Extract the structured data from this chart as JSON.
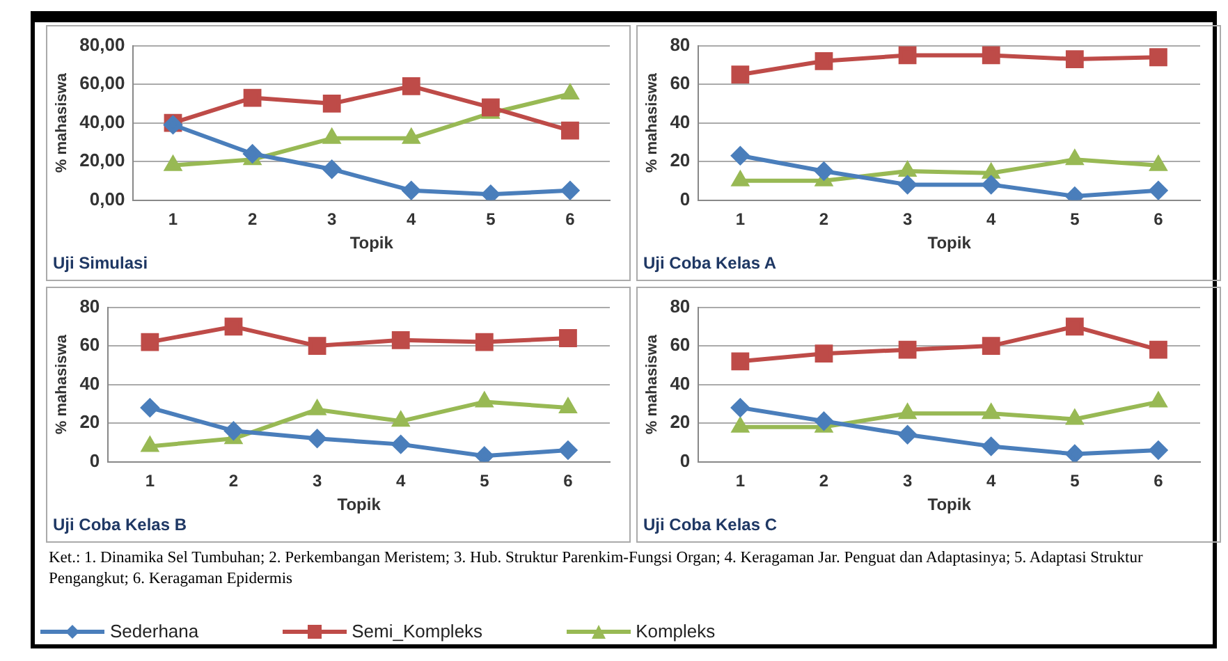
{
  "chart_data": [
    {
      "type": "line",
      "title": "Uji Simulasi",
      "xlabel": "Topik",
      "ylabel": "% mahasiswa",
      "categories": [
        "1",
        "2",
        "3",
        "4",
        "5",
        "6"
      ],
      "ylim": [
        0,
        80
      ],
      "yticks": [
        {
          "value": 0,
          "label": "0,00"
        },
        {
          "value": 20,
          "label": "20,00"
        },
        {
          "value": 40,
          "label": "40,00"
        },
        {
          "value": 60,
          "label": "60,00"
        },
        {
          "value": 80,
          "label": "80,00"
        }
      ],
      "grid": "y",
      "series": [
        {
          "color": "#4a7ebb",
          "marker": "diamond",
          "values": [
            39,
            24,
            16,
            5,
            3,
            5
          ]
        },
        {
          "color": "#be4b48",
          "marker": "square",
          "values": [
            40,
            53,
            50,
            59,
            48,
            36
          ]
        },
        {
          "color": "#98b954",
          "marker": "triangle",
          "values": [
            18,
            21,
            32,
            32,
            45,
            55
          ]
        }
      ]
    },
    {
      "type": "line",
      "title": "Uji Coba Kelas A",
      "xlabel": "Topik",
      "ylabel": "% mahasiswa",
      "categories": [
        "1",
        "2",
        "3",
        "4",
        "5",
        "6"
      ],
      "ylim": [
        0,
        80
      ],
      "yticks": [
        0,
        20,
        40,
        60,
        80
      ],
      "grid": "y",
      "series": [
        {
          "color": "#4a7ebb",
          "marker": "diamond",
          "values": [
            23,
            15,
            8,
            8,
            2,
            5
          ]
        },
        {
          "color": "#be4b48",
          "marker": "square",
          "values": [
            65,
            72,
            75,
            75,
            73,
            74
          ]
        },
        {
          "color": "#98b954",
          "marker": "triangle",
          "values": [
            10,
            10,
            15,
            14,
            21,
            18
          ]
        }
      ]
    },
    {
      "type": "line",
      "title": "Uji Coba Kelas B",
      "xlabel": "Topik",
      "ylabel": "% mahasiswa",
      "categories": [
        "1",
        "2",
        "3",
        "4",
        "5",
        "6"
      ],
      "ylim": [
        0,
        80
      ],
      "yticks": [
        0,
        20,
        40,
        60,
        80
      ],
      "grid": "y",
      "series": [
        {
          "color": "#4a7ebb",
          "marker": "diamond",
          "values": [
            28,
            16,
            12,
            9,
            3,
            6
          ]
        },
        {
          "color": "#be4b48",
          "marker": "square",
          "values": [
            62,
            70,
            60,
            63,
            62,
            64
          ]
        },
        {
          "color": "#98b954",
          "marker": "triangle",
          "values": [
            8,
            12,
            27,
            21,
            31,
            28
          ]
        }
      ]
    },
    {
      "type": "line",
      "title": "Uji Coba Kelas C",
      "xlabel": "Topik",
      "ylabel": "% mahasiswa",
      "categories": [
        "1",
        "2",
        "3",
        "4",
        "5",
        "6"
      ],
      "ylim": [
        0,
        80
      ],
      "yticks": [
        0,
        20,
        40,
        60,
        80
      ],
      "grid": "y",
      "legend": "bottom",
      "annotations": [
        "Ket.: 1. Dinamika Sel Tumbuhan; 2. Perkembangan Meristem; 3. Hub. Struktur Parenkim-Fungsi Organ; 4. Keragaman Jar. Penguat dan Adaptasinya; 5. Adaptasi Struktur Pengangkut; 6. Keragaman Epidermis"
      ],
      "series": [
        {
          "name": "Sederhana",
          "color": "#4a7ebb",
          "marker": "diamond",
          "values": [
            28,
            21,
            14,
            8,
            4,
            6
          ]
        },
        {
          "name": "Semi_Kompleks",
          "color": "#be4b48",
          "marker": "square",
          "values": [
            52,
            56,
            58,
            60,
            70,
            58
          ]
        },
        {
          "name": "Kompleks",
          "color": "#98b954",
          "marker": "triangle",
          "values": [
            18,
            18,
            25,
            25,
            22,
            31
          ]
        }
      ]
    }
  ]
}
